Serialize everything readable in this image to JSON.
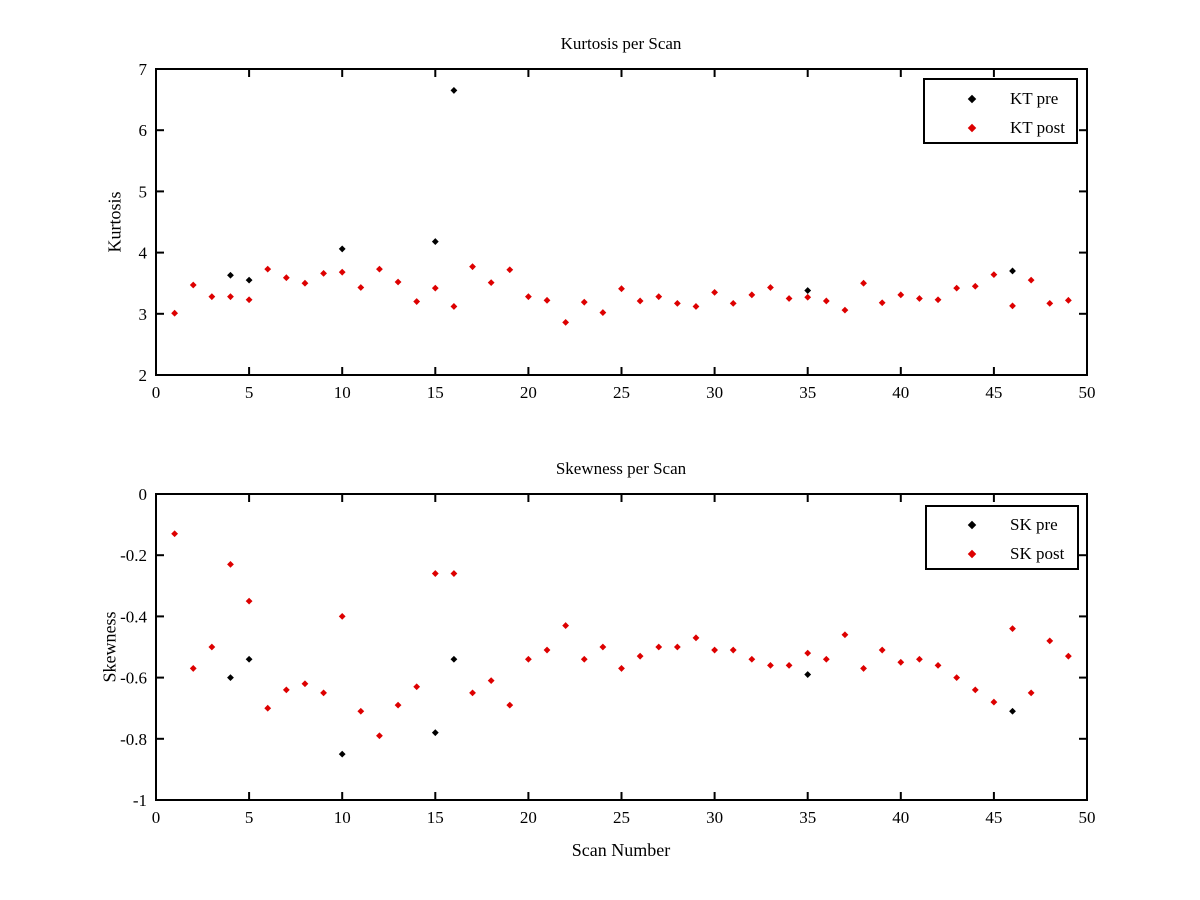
{
  "figure": {
    "background": "#ffffff",
    "axis_color": "#000000"
  },
  "colors": {
    "pre": "#000000",
    "post": "#dd0000"
  },
  "chart_data": [
    {
      "type": "scatter",
      "title": "Kurtosis per Scan",
      "ylabel": "Kurtosis",
      "xlabel": "",
      "xlim": [
        0,
        50
      ],
      "ylim": [
        2,
        7
      ],
      "xticks": [
        0,
        5,
        10,
        15,
        20,
        25,
        30,
        35,
        40,
        45,
        50
      ],
      "xticklabels": [
        "0",
        "5",
        "10",
        "15",
        "20",
        "25",
        "30",
        "35",
        "40",
        "45",
        "50"
      ],
      "yticks": [
        2,
        3,
        4,
        5,
        6,
        7
      ],
      "yticklabels": [
        "2",
        "3",
        "4",
        "5",
        "6",
        "7"
      ],
      "grid": false,
      "legend_position": "top-right",
      "series": [
        {
          "name": "KT pre",
          "color": "#000000",
          "marker": "diamond",
          "x": [
            4,
            5,
            10,
            15,
            16,
            35,
            46
          ],
          "y": [
            3.63,
            3.55,
            4.06,
            4.18,
            6.65,
            3.38,
            3.7
          ]
        },
        {
          "name": "KT post",
          "color": "#dd0000",
          "marker": "diamond",
          "x": [
            1,
            2,
            3,
            4,
            5,
            6,
            7,
            8,
            9,
            10,
            11,
            12,
            13,
            14,
            15,
            16,
            17,
            18,
            19,
            20,
            21,
            22,
            23,
            24,
            25,
            26,
            27,
            28,
            29,
            30,
            31,
            32,
            33,
            34,
            35,
            36,
            37,
            38,
            39,
            40,
            41,
            42,
            43,
            44,
            45,
            46,
            47,
            48,
            49
          ],
          "y": [
            3.01,
            3.47,
            3.28,
            3.28,
            3.23,
            3.73,
            3.59,
            3.5,
            3.66,
            3.68,
            3.43,
            3.73,
            3.52,
            3.2,
            3.42,
            3.12,
            3.77,
            3.51,
            3.72,
            3.28,
            3.22,
            2.86,
            3.19,
            3.02,
            3.41,
            3.21,
            3.28,
            3.17,
            3.12,
            3.35,
            3.17,
            3.31,
            3.43,
            3.25,
            3.27,
            3.21,
            3.06,
            3.5,
            3.18,
            3.31,
            3.25,
            3.23,
            3.42,
            3.45,
            3.64,
            3.13,
            3.55,
            3.17,
            3.22
          ]
        }
      ]
    },
    {
      "type": "scatter",
      "title": "Skewness per Scan",
      "ylabel": "Skewness",
      "xlabel": "Scan Number",
      "xlim": [
        0,
        50
      ],
      "ylim": [
        -1,
        0
      ],
      "xticks": [
        0,
        5,
        10,
        15,
        20,
        25,
        30,
        35,
        40,
        45,
        50
      ],
      "xticklabels": [
        "0",
        "5",
        "10",
        "15",
        "20",
        "25",
        "30",
        "35",
        "40",
        "45",
        "50"
      ],
      "yticks": [
        -1,
        -0.8,
        -0.6,
        -0.4,
        -0.2,
        0
      ],
      "yticklabels": [
        "-1",
        "-0.8",
        "-0.6",
        "-0.4",
        "-0.2",
        "0"
      ],
      "grid": false,
      "legend_position": "top-right",
      "series": [
        {
          "name": "SK pre",
          "color": "#000000",
          "marker": "diamond",
          "x": [
            4,
            5,
            10,
            15,
            16,
            35,
            46
          ],
          "y": [
            -0.6,
            -0.54,
            -0.85,
            -0.78,
            -0.54,
            -0.59,
            -0.71
          ]
        },
        {
          "name": "SK post",
          "color": "#dd0000",
          "marker": "diamond",
          "x": [
            1,
            2,
            3,
            4,
            5,
            6,
            7,
            8,
            9,
            10,
            11,
            12,
            13,
            14,
            15,
            16,
            17,
            18,
            19,
            20,
            21,
            22,
            23,
            24,
            25,
            26,
            27,
            28,
            29,
            30,
            31,
            32,
            33,
            34,
            35,
            36,
            37,
            38,
            39,
            40,
            41,
            42,
            43,
            44,
            45,
            46,
            47,
            48,
            49
          ],
          "y": [
            -0.13,
            -0.57,
            -0.5,
            -0.23,
            -0.35,
            -0.7,
            -0.64,
            -0.62,
            -0.65,
            -0.4,
            -0.71,
            -0.79,
            -0.69,
            -0.63,
            -0.26,
            -0.26,
            -0.65,
            -0.61,
            -0.69,
            -0.54,
            -0.51,
            -0.43,
            -0.54,
            -0.5,
            -0.57,
            -0.53,
            -0.5,
            -0.5,
            -0.47,
            -0.51,
            -0.51,
            -0.54,
            -0.56,
            -0.56,
            -0.52,
            -0.54,
            -0.46,
            -0.57,
            -0.51,
            -0.55,
            -0.54,
            -0.56,
            -0.6,
            -0.64,
            -0.68,
            -0.44,
            -0.65,
            -0.48,
            -0.53
          ]
        }
      ]
    }
  ]
}
